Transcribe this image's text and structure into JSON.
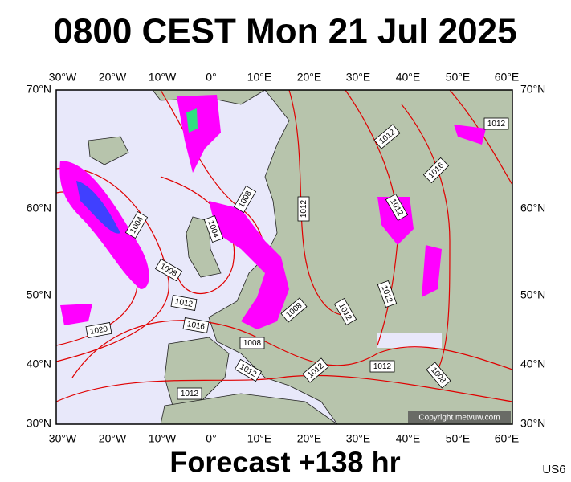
{
  "header": {
    "title": "0800 CEST Mon 21 Jul 2025"
  },
  "map": {
    "lon_labels": [
      "30°W",
      "20°W",
      "10°W",
      "0°",
      "10°E",
      "20°E",
      "30°E",
      "40°E",
      "50°E",
      "60°E"
    ],
    "lat_labels": [
      "70°N",
      "60°N",
      "50°N",
      "40°N",
      "30°N"
    ],
    "isobar_labels": [
      "1012",
      "1012",
      "1016",
      "1004",
      "1008",
      "1004",
      "1012",
      "1012",
      "1008",
      "1012",
      "1016",
      "1020",
      "1008",
      "1012",
      "1012",
      "1008",
      "1012",
      "1012",
      "1012",
      "1008",
      "1012"
    ],
    "copyright": "Copyright metvuw.com"
  },
  "footer": {
    "forecast": "Forecast +138 hr",
    "code": "US6"
  }
}
